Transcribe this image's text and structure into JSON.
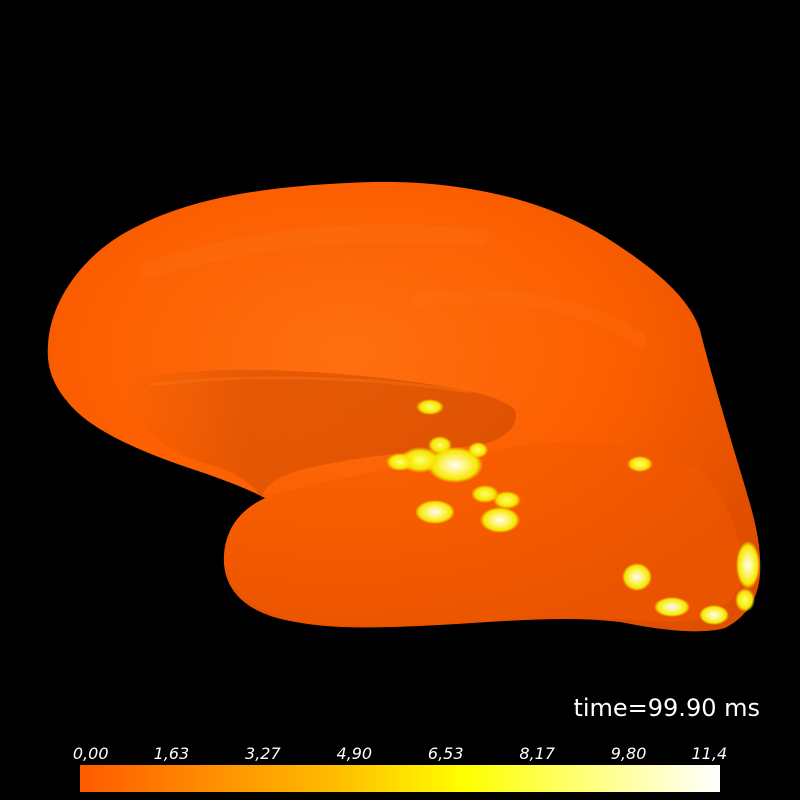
{
  "scene": {
    "background_color": "#000000",
    "surface_base_color": "#fb5e00",
    "activation_colors": [
      "#fdf00a",
      "#fffff0"
    ]
  },
  "time_label": "time=99.90 ms",
  "colorbar": {
    "colormap": [
      "#ff5a00",
      "#ff8d00",
      "#ffbd00",
      "#ffff00",
      "#ffff80",
      "#ffffff"
    ],
    "tick_labels": [
      "0,00",
      "1,63",
      "3,27",
      "4,90",
      "6,53",
      "8,17",
      "9,80",
      "11,4"
    ]
  }
}
